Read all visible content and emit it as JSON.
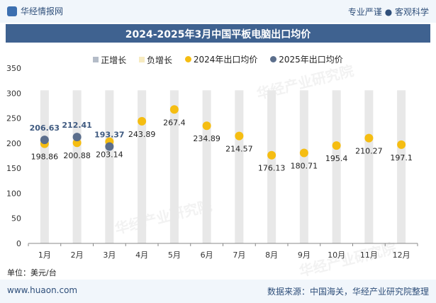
{
  "header": {
    "brand": "华经情报网",
    "slogan": "专业严谨 ● 客观科学"
  },
  "chart_title": "2024-2025年3月中国平板电脑出口均价",
  "legend": [
    {
      "label": "正增长",
      "color": "#b4bcc8",
      "shape": "rect"
    },
    {
      "label": "负增长",
      "color": "#f7ebc0",
      "shape": "rect"
    },
    {
      "label": "2024年出口均价",
      "color": "#f5bd12",
      "shape": "dot"
    },
    {
      "label": "2025年出口均价",
      "color": "#5b6e8c",
      "shape": "dot"
    }
  ],
  "unit": "单位：美元/台",
  "footer": {
    "site": "www.huaon.com",
    "source": "数据来源：中国海关，华经产业研究院整理"
  },
  "watermark": "华经产业研究院",
  "colors": {
    "series2024": "#f5bd12",
    "series2025": "#5b6e8c",
    "label2025": "#3f5a80",
    "bar": "#e8e8e8"
  },
  "chart_data": {
    "type": "scatter",
    "categories": [
      "1月",
      "2月",
      "3月",
      "4月",
      "5月",
      "6月",
      "7月",
      "8月",
      "9月",
      "10月",
      "11月",
      "12月"
    ],
    "ylim": [
      0,
      350
    ],
    "yticks": [
      0,
      50,
      100,
      150,
      200,
      250,
      300,
      350
    ],
    "grid": false,
    "series": [
      {
        "name": "2024年出口均价",
        "values": [
          198.86,
          200.88,
          203.14,
          243.89,
          267.4,
          234.89,
          214.57,
          176.13,
          180.71,
          195.4,
          210.27,
          197.1
        ]
      },
      {
        "name": "2025年出口均价",
        "values": [
          206.63,
          212.41,
          193.37
        ]
      }
    ],
    "labels_2024": [
      "198.86",
      "200.88",
      "203.14",
      "243.89",
      "267.4",
      "234.89",
      "214.57",
      "176.13",
      "180.71",
      "195.4",
      "210.27",
      "197.1"
    ],
    "labels_2025": [
      "206.63",
      "212.41",
      "193.37"
    ]
  }
}
